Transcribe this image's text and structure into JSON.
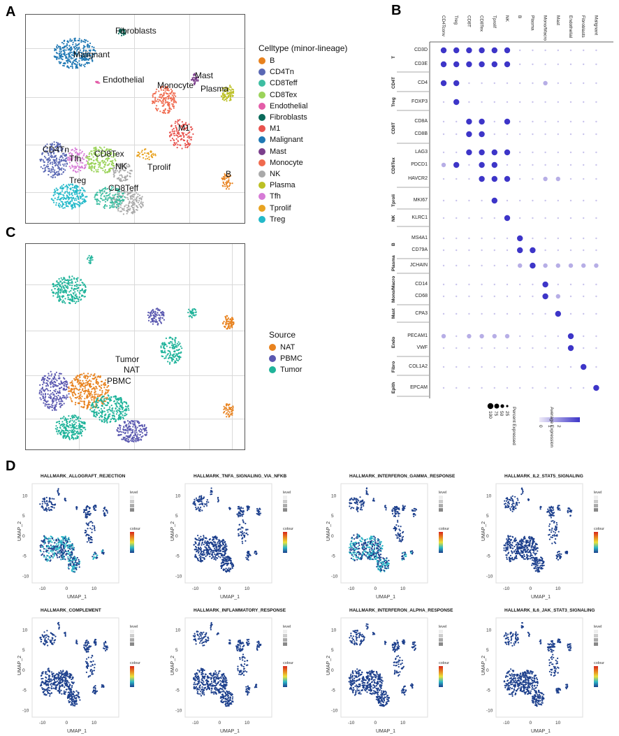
{
  "panels": {
    "A": "A",
    "B": "B",
    "C": "C",
    "D": "D"
  },
  "panelA": {
    "legend_title": "Celltype (minor-lineage)",
    "legend": [
      {
        "label": "B",
        "color": "#e8821e"
      },
      {
        "label": "CD4Tn",
        "color": "#5a68b4"
      },
      {
        "label": "CD8Teff",
        "color": "#3ebea2"
      },
      {
        "label": "CD8Tex",
        "color": "#9bd35a"
      },
      {
        "label": "Endothelial",
        "color": "#e35da8"
      },
      {
        "label": "Fibroblasts",
        "color": "#0a6a5a"
      },
      {
        "label": "M1",
        "color": "#e8534e"
      },
      {
        "label": "Malignant",
        "color": "#1f78b4"
      },
      {
        "label": "Mast",
        "color": "#7b3f8c"
      },
      {
        "label": "Monocyte",
        "color": "#f06a4e"
      },
      {
        "label": "NK",
        "color": "#a9a9a9"
      },
      {
        "label": "Plasma",
        "color": "#bcc024"
      },
      {
        "label": "Tfh",
        "color": "#d67bd6"
      },
      {
        "label": "Tprolif",
        "color": "#e8a322"
      },
      {
        "label": "Treg",
        "color": "#23b9c9"
      }
    ],
    "cluster_labels": {
      "fibroblasts": "Fibroblasts",
      "malignant": "Malignant",
      "mast": "Mast",
      "endothelial": "Endothelial",
      "monocyte": "Monocyte",
      "plasma": "Plasma",
      "m1": "M1",
      "cd4tn": "CD4Tn",
      "tfh": "Tfh",
      "cd8tex": "CD8Tex",
      "nk": "NK",
      "tprolif": "Tprolif",
      "b": "B",
      "treg": "Treg",
      "cd8teff": "CD8Teff"
    }
  },
  "panelC": {
    "legend_title": "Source",
    "legend": [
      {
        "label": "NAT",
        "color": "#e8821e"
      },
      {
        "label": "PBMC",
        "color": "#5a58b0"
      },
      {
        "label": "Tumor",
        "color": "#1fb39a"
      }
    ],
    "cluster_labels": {
      "tumor": "Tumor",
      "nat": "NAT",
      "pbmc": "PBMC"
    }
  },
  "panelB": {
    "columns": [
      "CD4Tconv",
      "Treg",
      "CD8T",
      "CD8Tex",
      "Tprolif",
      "NK",
      "B",
      "Plasma",
      "Mono/Macro",
      "Mast",
      "Endothelial",
      "Fibroblasts",
      "Malignant"
    ],
    "genes": [
      "CD3D",
      "CD3E",
      "CD4",
      "FOXP3",
      "CD8A",
      "CD8B",
      "LAG3",
      "PDCD1",
      "HAVCR2",
      "MKI67",
      "KLRC1",
      "MS4A1",
      "CD79A",
      "JCHAIN",
      "CD14",
      "CD68",
      "CPA3",
      "PECAM1",
      "VWF",
      "COL1A2",
      "EPCAM"
    ],
    "groups": [
      "T",
      "CD4T",
      "Treg",
      "CD8T",
      "CD8Tex",
      "Tproli",
      "NK",
      "B",
      "Plasma",
      "Mono/\nMacro",
      "Mast",
      "Endo",
      "Fibro",
      "Epith"
    ],
    "legend_expr_title": "Average Expression",
    "legend_expr_ticks": [
      "0",
      "1",
      "2"
    ],
    "legend_pct_title": "Percent Expressed",
    "legend_pct_ticks": [
      "25",
      "50",
      "75",
      "100"
    ]
  },
  "panelD": {
    "plots": [
      {
        "title": "HALLMARK_ALLOGRAFT_REJECTION"
      },
      {
        "title": "HALLMARK_TNFA_SIGNALING_VIA_NFKB"
      },
      {
        "title": "HALLMARK_INTERFERON_GAMMA_RESPONSE"
      },
      {
        "title": "HALLMARK_IL2_STAT5_SIGNALING"
      },
      {
        "title": "HALLMARK_COMPLEMENT"
      },
      {
        "title": "HALLMARK_INFLAMMATORY_RESPONSE"
      },
      {
        "title": "HALLMARK_INTERFERON_ALPHA_RESPONSE"
      },
      {
        "title": "HALLMARK_IL6_JAK_STAT3_SIGNALING"
      }
    ],
    "x_label": "UMAP_1",
    "y_label": "UMAP_2",
    "x_ticks": [
      "-10",
      "0",
      "10"
    ],
    "y_ticks": [
      "10",
      "5",
      "0",
      "-5",
      "-10"
    ],
    "legend_level": "level",
    "legend_colour": "colour"
  },
  "colors": {
    "bg": "#ffffff",
    "grid": "#d9d9d9",
    "dot": "#3d35c8",
    "dot_light": "#c9c4ec"
  }
}
